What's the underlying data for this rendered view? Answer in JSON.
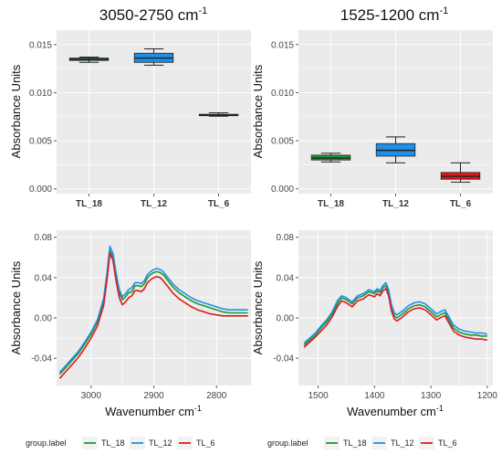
{
  "colors": {
    "TL_18": "#1a9a32",
    "TL_12": "#1e90e8",
    "TL_6": "#e01a1a",
    "panel_bg": "#ebebeb",
    "grid": "#ffffff"
  },
  "chart_data": [
    {
      "type": "box",
      "title": "3050-2750 cm",
      "title_sup": "-1",
      "ylabel": "Absorbance Units",
      "xlabel": "",
      "ylim": [
        -0.0005,
        0.0165
      ],
      "yticks": [
        "0.000",
        "0.005",
        "0.010",
        "0.015"
      ],
      "ytick_values": [
        0,
        0.005,
        0.01,
        0.015
      ],
      "categories": [
        "TL_18",
        "TL_12",
        "TL_6"
      ],
      "boxes": [
        {
          "name": "TL_18",
          "color": "#1a9a32",
          "min": 0.01315,
          "q1": 0.01335,
          "median": 0.01345,
          "q3": 0.0136,
          "max": 0.0137
        },
        {
          "name": "TL_12",
          "color": "#1e90e8",
          "min": 0.01285,
          "q1": 0.01315,
          "median": 0.0136,
          "q3": 0.0141,
          "max": 0.01455
        },
        {
          "name": "TL_6",
          "color": "#e01a1a",
          "min": 0.00755,
          "q1": 0.0076,
          "median": 0.00768,
          "q3": 0.00775,
          "max": 0.0079
        }
      ],
      "grid": true
    },
    {
      "type": "box",
      "title": "1525-1200 cm",
      "title_sup": "-1",
      "ylabel": "Absorbance Units",
      "xlabel": "",
      "ylim": [
        -0.0005,
        0.0165
      ],
      "yticks": [
        "0.000",
        "0.005",
        "0.010",
        "0.015"
      ],
      "ytick_values": [
        0,
        0.005,
        0.01,
        0.015
      ],
      "categories": [
        "TL_18",
        "TL_12",
        "TL_6"
      ],
      "boxes": [
        {
          "name": "TL_18",
          "color": "#1a9a32",
          "min": 0.0028,
          "q1": 0.003,
          "median": 0.0032,
          "q3": 0.0035,
          "max": 0.0037
        },
        {
          "name": "TL_12",
          "color": "#1e90e8",
          "min": 0.0027,
          "q1": 0.0034,
          "median": 0.004,
          "q3": 0.0047,
          "max": 0.0054
        },
        {
          "name": "TL_6",
          "color": "#e01a1a",
          "min": 0.0007,
          "q1": 0.001,
          "median": 0.0013,
          "q3": 0.0017,
          "max": 0.0027
        }
      ],
      "grid": true
    },
    {
      "type": "line",
      "title": "",
      "ylabel": "Absorbance Units",
      "xlabel": "Wavenumber cm",
      "xlabel_sup": "-1",
      "xlim": [
        3055,
        2745
      ],
      "ylim": [
        -0.067,
        0.087
      ],
      "xticks": [
        "3000",
        "2900",
        "2800"
      ],
      "xtick_values": [
        3000,
        2900,
        2800
      ],
      "yticks": [
        "-0.04",
        "0.00",
        "0.04",
        "0.08"
      ],
      "ytick_values": [
        -0.04,
        0,
        0.04,
        0.08
      ],
      "series": [
        {
          "name": "TL_18",
          "color": "#1a9a32",
          "x": [
            3050,
            3040,
            3030,
            3020,
            3010,
            3000,
            2990,
            2980,
            2975,
            2970,
            2965,
            2960,
            2955,
            2950,
            2945,
            2940,
            2935,
            2930,
            2925,
            2920,
            2915,
            2910,
            2905,
            2900,
            2895,
            2890,
            2885,
            2880,
            2875,
            2870,
            2860,
            2850,
            2840,
            2830,
            2820,
            2810,
            2800,
            2790,
            2780,
            2770,
            2760,
            2750
          ],
          "y": [
            -0.056,
            -0.049,
            -0.042,
            -0.035,
            -0.026,
            -0.016,
            -0.004,
            0.016,
            0.04,
            0.067,
            0.06,
            0.04,
            0.025,
            0.018,
            0.021,
            0.025,
            0.026,
            0.032,
            0.032,
            0.031,
            0.034,
            0.04,
            0.043,
            0.045,
            0.046,
            0.045,
            0.043,
            0.039,
            0.035,
            0.031,
            0.025,
            0.021,
            0.017,
            0.014,
            0.012,
            0.01,
            0.008,
            0.006,
            0.005,
            0.005,
            0.005,
            0.005
          ]
        },
        {
          "name": "TL_12",
          "color": "#1e90e8",
          "x": [
            3050,
            3040,
            3030,
            3020,
            3010,
            3000,
            2990,
            2980,
            2975,
            2970,
            2965,
            2960,
            2955,
            2950,
            2945,
            2940,
            2935,
            2930,
            2925,
            2920,
            2915,
            2910,
            2905,
            2900,
            2895,
            2890,
            2885,
            2880,
            2875,
            2870,
            2860,
            2850,
            2840,
            2830,
            2820,
            2810,
            2800,
            2790,
            2780,
            2770,
            2760,
            2750
          ],
          "y": [
            -0.054,
            -0.047,
            -0.04,
            -0.033,
            -0.024,
            -0.014,
            -0.002,
            0.019,
            0.043,
            0.071,
            0.064,
            0.044,
            0.028,
            0.021,
            0.024,
            0.028,
            0.03,
            0.035,
            0.035,
            0.034,
            0.037,
            0.043,
            0.046,
            0.048,
            0.049,
            0.048,
            0.046,
            0.042,
            0.038,
            0.034,
            0.028,
            0.024,
            0.02,
            0.017,
            0.015,
            0.013,
            0.011,
            0.009,
            0.008,
            0.008,
            0.008,
            0.008
          ]
        },
        {
          "name": "TL_6",
          "color": "#e01a1a",
          "x": [
            3050,
            3040,
            3030,
            3020,
            3010,
            3000,
            2990,
            2980,
            2975,
            2970,
            2965,
            2960,
            2955,
            2950,
            2945,
            2940,
            2935,
            2930,
            2925,
            2920,
            2915,
            2910,
            2905,
            2900,
            2895,
            2890,
            2885,
            2880,
            2875,
            2870,
            2860,
            2850,
            2840,
            2830,
            2820,
            2810,
            2800,
            2790,
            2780,
            2770,
            2760,
            2750
          ],
          "y": [
            -0.06,
            -0.053,
            -0.046,
            -0.039,
            -0.03,
            -0.02,
            -0.008,
            0.012,
            0.036,
            0.064,
            0.057,
            0.036,
            0.02,
            0.013,
            0.016,
            0.02,
            0.022,
            0.027,
            0.027,
            0.026,
            0.029,
            0.035,
            0.038,
            0.04,
            0.041,
            0.04,
            0.037,
            0.033,
            0.029,
            0.025,
            0.019,
            0.015,
            0.011,
            0.008,
            0.006,
            0.004,
            0.003,
            0.002,
            0.002,
            0.002,
            0.002,
            0.002
          ]
        }
      ],
      "grid": true
    },
    {
      "type": "line",
      "title": "",
      "ylabel": "Absorbance Units",
      "xlabel": "Wavenumber cm",
      "xlabel_sup": "-1",
      "xlim": [
        1535,
        1190
      ],
      "ylim": [
        -0.067,
        0.087
      ],
      "xticks": [
        "1500",
        "1400",
        "1300",
        "1200"
      ],
      "xtick_values": [
        1500,
        1400,
        1300,
        1200
      ],
      "yticks": [
        "-0.04",
        "0.00",
        "0.04",
        "0.08"
      ],
      "ytick_values": [
        -0.04,
        0,
        0.04,
        0.08
      ],
      "series": [
        {
          "name": "TL_18",
          "color": "#1a9a32",
          "x": [
            1525,
            1515,
            1505,
            1495,
            1485,
            1475,
            1465,
            1458,
            1450,
            1440,
            1430,
            1420,
            1410,
            1400,
            1395,
            1390,
            1385,
            1380,
            1375,
            1370,
            1365,
            1360,
            1350,
            1340,
            1330,
            1320,
            1310,
            1300,
            1290,
            1280,
            1275,
            1270,
            1260,
            1250,
            1240,
            1230,
            1220,
            1210,
            1200
          ],
          "y": [
            -0.027,
            -0.022,
            -0.017,
            -0.01,
            -0.004,
            0.004,
            0.015,
            0.02,
            0.018,
            0.014,
            0.02,
            0.022,
            0.026,
            0.024,
            0.027,
            0.025,
            0.03,
            0.032,
            0.025,
            0.01,
            0.002,
            0.0,
            0.004,
            0.009,
            0.012,
            0.013,
            0.011,
            0.006,
            0.001,
            0.004,
            0.005,
            0.0,
            -0.01,
            -0.014,
            -0.016,
            -0.017,
            -0.017,
            -0.018,
            -0.018
          ]
        },
        {
          "name": "TL_12",
          "color": "#1e90e8",
          "x": [
            1525,
            1515,
            1505,
            1495,
            1485,
            1475,
            1465,
            1458,
            1450,
            1440,
            1430,
            1420,
            1410,
            1400,
            1395,
            1390,
            1385,
            1380,
            1375,
            1370,
            1365,
            1360,
            1350,
            1340,
            1330,
            1320,
            1310,
            1300,
            1290,
            1280,
            1275,
            1270,
            1260,
            1250,
            1240,
            1230,
            1220,
            1210,
            1200
          ],
          "y": [
            -0.025,
            -0.02,
            -0.015,
            -0.008,
            -0.002,
            0.006,
            0.018,
            0.022,
            0.02,
            0.016,
            0.022,
            0.024,
            0.028,
            0.026,
            0.029,
            0.027,
            0.032,
            0.035,
            0.028,
            0.013,
            0.005,
            0.003,
            0.007,
            0.012,
            0.015,
            0.016,
            0.014,
            0.009,
            0.004,
            0.007,
            0.008,
            0.003,
            -0.007,
            -0.011,
            -0.013,
            -0.014,
            -0.015,
            -0.015,
            -0.016
          ]
        },
        {
          "name": "TL_6",
          "color": "#e01a1a",
          "x": [
            1525,
            1515,
            1505,
            1495,
            1485,
            1475,
            1465,
            1458,
            1450,
            1440,
            1430,
            1420,
            1410,
            1400,
            1395,
            1390,
            1385,
            1380,
            1375,
            1370,
            1365,
            1360,
            1350,
            1340,
            1330,
            1320,
            1310,
            1300,
            1290,
            1280,
            1275,
            1270,
            1260,
            1250,
            1240,
            1230,
            1220,
            1210,
            1200
          ],
          "y": [
            -0.029,
            -0.024,
            -0.019,
            -0.013,
            -0.007,
            0.001,
            0.012,
            0.017,
            0.015,
            0.011,
            0.017,
            0.019,
            0.023,
            0.021,
            0.024,
            0.022,
            0.027,
            0.029,
            0.022,
            0.007,
            -0.001,
            -0.003,
            0.001,
            0.006,
            0.009,
            0.01,
            0.008,
            0.003,
            -0.002,
            0.001,
            0.002,
            -0.003,
            -0.013,
            -0.017,
            -0.019,
            -0.02,
            -0.021,
            -0.021,
            -0.022
          ]
        }
      ],
      "grid": true
    }
  ],
  "legend": {
    "title": "group.label",
    "items": [
      "TL_18",
      "TL_12",
      "TL_6"
    ]
  }
}
